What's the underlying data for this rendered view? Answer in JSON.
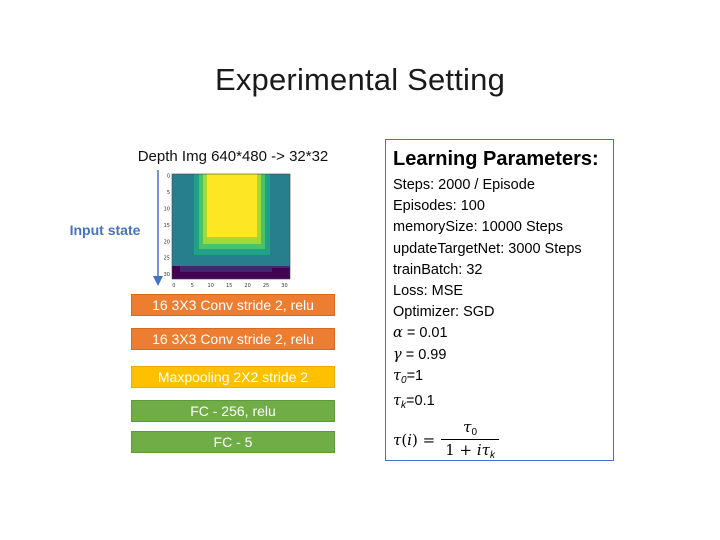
{
  "title": "Experimental Setting",
  "depth_caption": "Depth Img 640*480 -> 32*32",
  "input_label": "Input state",
  "depth_plot": {
    "x_ticks": [
      "0",
      "5",
      "10",
      "15",
      "20",
      "25",
      "30"
    ],
    "y_ticks": [
      "0",
      "5",
      "10",
      "15",
      "20",
      "25",
      "30"
    ]
  },
  "layers": [
    {
      "label": "16 3X3 Conv stride 2, relu",
      "type": "conv"
    },
    {
      "label": "16 3X3 Conv stride 2, relu",
      "type": "conv"
    },
    {
      "label": "Maxpooling 2X2 stride 2",
      "type": "pool"
    },
    {
      "label": "FC - 256, relu",
      "type": "fc"
    },
    {
      "label": "FC - 5",
      "type": "fc"
    }
  ],
  "params": {
    "title": "Learning Parameters:",
    "lines": [
      "Steps: 2000 / Episode",
      "Episodes: 100",
      "memorySize: 10000 Steps",
      "updateTargetNet: 3000 Steps",
      "trainBatch: 32",
      "Loss: MSE",
      "Optimizer: SGD"
    ],
    "alpha_value": " = 0.01",
    "gamma_value": " = 0.99",
    "tau0_value": "=1",
    "tauk_value": "=0.1"
  },
  "colors": {
    "conv": "#ED7D31",
    "pool": "#FFC000",
    "fc": "#70AD47",
    "accent": "#4472C4"
  }
}
